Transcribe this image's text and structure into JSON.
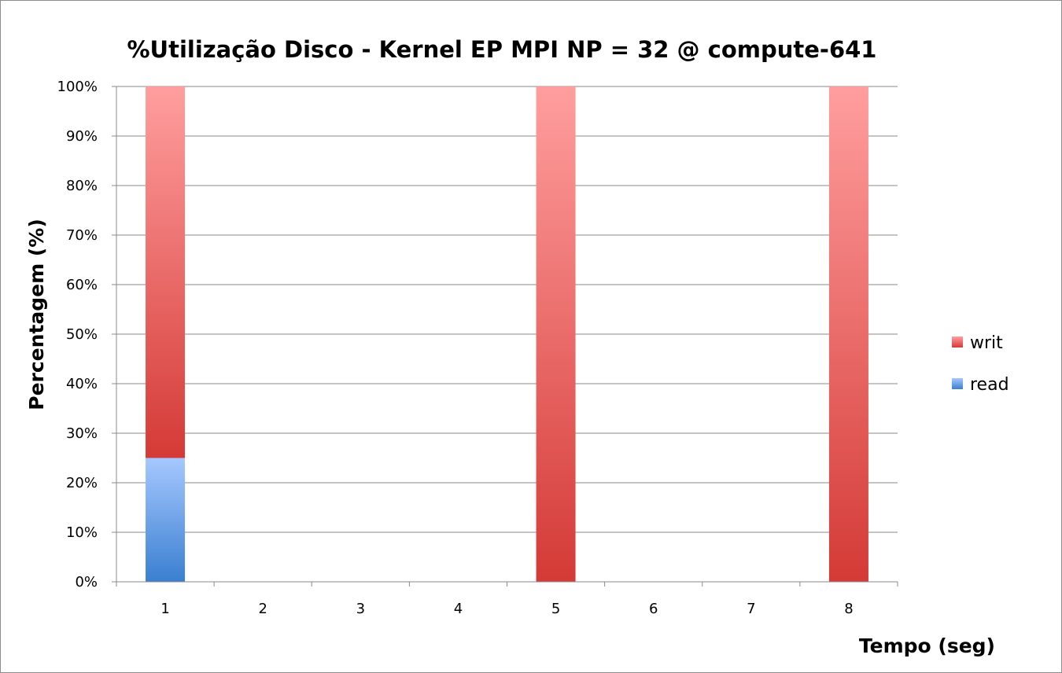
{
  "chart_data": {
    "type": "bar",
    "stacked": true,
    "normalized": true,
    "title": "%Utilização Disco - Kernel EP MPI NP = 32 @ compute-641",
    "xlabel": "Tempo (seg)",
    "ylabel": "Percentagem (%)",
    "categories": [
      "1",
      "2",
      "3",
      "4",
      "5",
      "6",
      "7",
      "8"
    ],
    "ylim": [
      0,
      100
    ],
    "yticks": [
      "0%",
      "10%",
      "20%",
      "30%",
      "40%",
      "50%",
      "60%",
      "70%",
      "80%",
      "90%",
      "100%"
    ],
    "grid": true,
    "legend_position": "right",
    "series": [
      {
        "name": "read",
        "values": [
          25,
          0,
          0,
          0,
          0,
          0,
          0,
          0
        ],
        "color_light": "#a6c8ff",
        "color_dark": "#3a7fd0"
      },
      {
        "name": "writ",
        "values": [
          75,
          0,
          0,
          0,
          100,
          0,
          0,
          100
        ],
        "color_light": "#ff9e9e",
        "color_dark": "#d43a36"
      }
    ],
    "legend_order": [
      "writ",
      "read"
    ]
  }
}
